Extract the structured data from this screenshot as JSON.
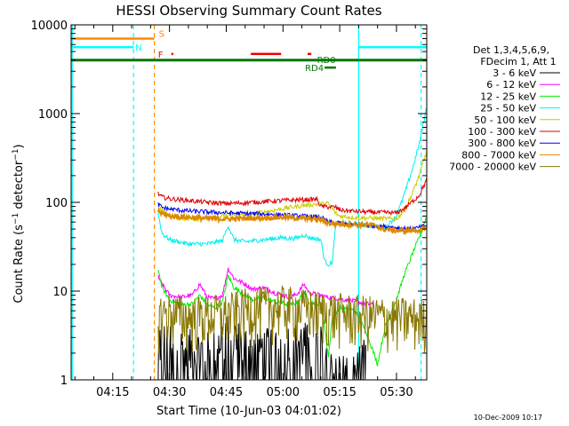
{
  "chart_data": {
    "type": "line",
    "title": "HESSI Observing Summary Count Rates",
    "xlabel": "Start Time (10-Jun-03 04:01:02)",
    "ylabel": "Count Rate (s⁻¹ detector⁻¹)",
    "ylabel_parts": {
      "base": "Count Rate (s",
      "sup1": "−1",
      "mid": " detector",
      "sup2": "−1",
      "end": ")"
    },
    "yscale": "log",
    "ylim": [
      1,
      10000
    ],
    "xlim_minutes": [
      4,
      98
    ],
    "xticks": [
      {
        "label": "04:15",
        "minute": 15
      },
      {
        "label": "04:30",
        "minute": 30
      },
      {
        "label": "04:45",
        "minute": 45
      },
      {
        "label": "05:00",
        "minute": 60
      },
      {
        "label": "05:15",
        "minute": 75
      },
      {
        "label": "05:30",
        "minute": 90
      }
    ],
    "yticks": [
      {
        "label": "1",
        "value": 1
      },
      {
        "label": "10",
        "value": 10
      },
      {
        "label": "100",
        "value": 100
      },
      {
        "label": "1000",
        "value": 1000
      },
      {
        "label": "10000",
        "value": 10000
      }
    ],
    "legend": {
      "placement": "right",
      "header": [
        "Det 1,3,4,5,6,9,",
        "FDecim 1, Att 1"
      ],
      "entries": [
        {
          "name": "3 - 6 keV",
          "color": "#000000"
        },
        {
          "name": "6 - 12 keV",
          "color": "#ff00ff"
        },
        {
          "name": "12 - 25 keV",
          "color": "#00ee00"
        },
        {
          "name": "25 - 50 keV",
          "color": "#00eeee"
        },
        {
          "name": "50 - 100 keV",
          "color": "#cccc00"
        },
        {
          "name": "100 - 300 keV",
          "color": "#dd0000"
        },
        {
          "name": "300 - 800 keV",
          "color": "#0000ee"
        },
        {
          "name": "800 - 7000 keV",
          "color": "#dd8800"
        },
        {
          "name": "7000 - 20000 keV",
          "color": "#887700"
        }
      ]
    },
    "flags": [
      {
        "label": "S",
        "color": "#ff8800",
        "y": 7000,
        "segments": [
          [
            4,
            26
          ]
        ]
      },
      {
        "label": "N",
        "color": "#00ffff",
        "y": 5600,
        "segments": [
          [
            4,
            20.5
          ],
          [
            80,
            98
          ]
        ]
      },
      {
        "label": "F",
        "color": "#ee0000",
        "y": 4700,
        "segments": [
          [
            30.5,
            31
          ],
          [
            51.5,
            59.5
          ],
          [
            66.5,
            67.5
          ]
        ]
      },
      {
        "label": "RD0",
        "color": "#007700",
        "y": 4000,
        "segments": [
          [
            4,
            98
          ]
        ]
      },
      {
        "label": "RD4",
        "color": "#007700",
        "y": 3300,
        "segments": [
          [
            71,
            74
          ]
        ]
      }
    ],
    "vlines": [
      {
        "minute": 4.3,
        "color": "#00ffff",
        "style": "solid"
      },
      {
        "minute": 20.5,
        "color": "#00ffff",
        "style": "dashed"
      },
      {
        "minute": 26,
        "color": "#ff8800",
        "style": "dashed"
      },
      {
        "minute": 80,
        "color": "#00ffff",
        "style": "solid"
      },
      {
        "minute": 96.5,
        "color": "#00ffff",
        "style": "dashed"
      }
    ],
    "series": [
      {
        "name": "3 - 6 keV",
        "color": "#000000",
        "style": "noisy",
        "x": [
          27,
          30,
          35,
          40,
          45,
          50,
          55,
          60,
          65,
          70,
          75,
          78,
          79,
          80.5,
          82
        ],
        "y": [
          3,
          2.5,
          2.3,
          2.1,
          3.5,
          2.5,
          2.3,
          2.6,
          2.8,
          2.5,
          1.3,
          1.1,
          1.2,
          1.5,
          2
        ]
      },
      {
        "name": "6 - 12 keV",
        "color": "#ff00ff",
        "x": [
          27,
          27.5,
          30,
          33,
          36,
          38,
          40,
          42,
          44,
          45.5,
          47,
          50,
          52,
          55,
          58,
          60,
          62,
          64,
          65.5,
          67,
          70,
          72,
          74,
          76,
          78,
          80,
          82,
          84
        ],
        "y": [
          15,
          13,
          9,
          8.5,
          9,
          12,
          8.5,
          8.2,
          9,
          18,
          14,
          12,
          10.5,
          11,
          9.5,
          9,
          8.5,
          9.5,
          12,
          9.5,
          9,
          8.5,
          8.3,
          8,
          7.8,
          7.5,
          7.2,
          7
        ]
      },
      {
        "name": "12 - 25 keV",
        "color": "#00ee00",
        "x": [
          27,
          28,
          30,
          33,
          36,
          38,
          40,
          42,
          44,
          45.5,
          47,
          50,
          52,
          55,
          58,
          60,
          62,
          64,
          65.5,
          67,
          70,
          71,
          72,
          73,
          75,
          77,
          79,
          80.5,
          82,
          85,
          87,
          90,
          92,
          94,
          96,
          98
        ],
        "y": [
          18,
          11,
          8,
          7,
          7.2,
          9,
          7,
          6.5,
          7.5,
          15,
          11,
          9,
          8,
          8.5,
          7.5,
          7.3,
          7,
          7.5,
          10,
          7.5,
          7.2,
          4,
          1.8,
          5,
          6.5,
          6.3,
          6,
          4.5,
          3.5,
          1.5,
          4,
          8,
          15,
          25,
          40,
          70
        ]
      },
      {
        "name": "25 - 50 keV",
        "color": "#00eeee",
        "x": [
          27,
          28,
          30,
          35,
          40,
          44,
          45.5,
          47,
          50,
          55,
          60,
          62,
          64,
          65.5,
          67,
          70,
          71,
          72,
          73,
          74,
          76,
          78,
          80,
          82,
          85,
          87,
          90,
          92,
          94,
          96,
          98
        ],
        "y": [
          75,
          45,
          38,
          34,
          34,
          37,
          55,
          38,
          36,
          38,
          40,
          39,
          40,
          43,
          40,
          38,
          22,
          20,
          21,
          58,
          58,
          57,
          56,
          55,
          53,
          52,
          70,
          120,
          220,
          450,
          1200
        ]
      },
      {
        "name": "50 - 100 keV",
        "color": "#cccc00",
        "x": [
          27,
          29,
          32,
          35,
          40,
          45,
          50,
          55,
          60,
          62,
          65,
          68,
          70,
          72,
          74,
          75,
          78,
          80,
          85,
          90,
          92,
          94,
          96,
          98
        ],
        "y": [
          90,
          75,
          68,
          65,
          66,
          70,
          72,
          78,
          85,
          88,
          92,
          95,
          96,
          97,
          75,
          70,
          68,
          67,
          66,
          65,
          80,
          120,
          200,
          380
        ]
      },
      {
        "name": "100 - 300 keV",
        "color": "#dd0000",
        "x": [
          27,
          28,
          30,
          35,
          40,
          45,
          50,
          55,
          60,
          65,
          69,
          70,
          74,
          75,
          78,
          82,
          86,
          90,
          92,
          94,
          96,
          98
        ],
        "y": [
          125,
          115,
          110,
          105,
          100,
          97,
          99,
          102,
          105,
          107,
          108,
          90,
          88,
          82,
          80,
          78,
          77,
          76,
          85,
          100,
          120,
          180
        ]
      },
      {
        "name": "300 - 800 keV",
        "color": "#0000ee",
        "x": [
          27,
          28,
          30,
          35,
          40,
          45,
          50,
          55,
          60,
          65,
          70,
          72,
          75,
          80,
          85,
          88,
          90,
          92,
          94,
          96,
          98
        ],
        "y": [
          95,
          88,
          84,
          80,
          78,
          76,
          75,
          74,
          72,
          70,
          68,
          60,
          58,
          56,
          54,
          53,
          52,
          51,
          50,
          52,
          55
        ]
      },
      {
        "name": "800 - 7000 keV",
        "color": "#dd8800",
        "width": 2,
        "x": [
          27,
          28,
          30,
          35,
          40,
          45,
          50,
          55,
          60,
          65,
          70,
          72,
          75,
          80,
          85,
          86,
          88,
          90,
          92,
          94,
          96,
          98
        ],
        "y": [
          80,
          75,
          70,
          68,
          66,
          65,
          66,
          67,
          68,
          66,
          64,
          58,
          57,
          56,
          55,
          50,
          49,
          48,
          48,
          48,
          49,
          50
        ]
      },
      {
        "name": "7000 - 20000 keV",
        "color": "#887700",
        "style": "noisy",
        "x": [
          27,
          30,
          35,
          40,
          45,
          50,
          55,
          60,
          65,
          70,
          75,
          80,
          85,
          90,
          95,
          98
        ],
        "y": [
          5.5,
          5.8,
          5.2,
          5.5,
          5.6,
          6.5,
          6.8,
          7,
          6.5,
          6,
          5.8,
          5.5,
          5.3,
          5.2,
          5.1,
          5
        ]
      }
    ]
  },
  "timestamp": "10-Dec-2009 10:17"
}
